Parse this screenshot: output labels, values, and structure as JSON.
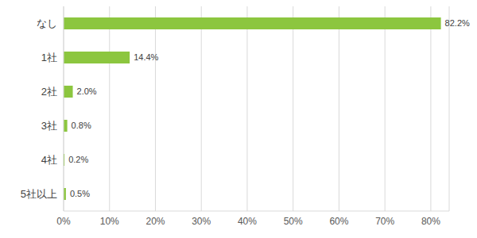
{
  "chart_data": {
    "type": "bar",
    "orientation": "horizontal",
    "categories": [
      "なし",
      "1社",
      "2社",
      "3社",
      "4社",
      "5社以上"
    ],
    "values": [
      82.2,
      14.4,
      2.0,
      0.8,
      0.2,
      0.5
    ],
    "value_labels": [
      "82.2%",
      "14.4%",
      "2.0%",
      "0.8%",
      "0.2%",
      "0.5%"
    ],
    "color": "#8cc63f",
    "xlim": [
      0,
      84
    ],
    "xticks": [
      {
        "value": 0,
        "label": "0%"
      },
      {
        "value": 10,
        "label": "10%"
      },
      {
        "value": 20,
        "label": "20%"
      },
      {
        "value": 30,
        "label": "30%"
      },
      {
        "value": 40,
        "label": "40%"
      },
      {
        "value": 50,
        "label": "50%"
      },
      {
        "value": 60,
        "label": "60%"
      },
      {
        "value": 70,
        "label": "70%"
      },
      {
        "value": 80,
        "label": "80%"
      }
    ],
    "grid": true,
    "data_labels": true
  }
}
